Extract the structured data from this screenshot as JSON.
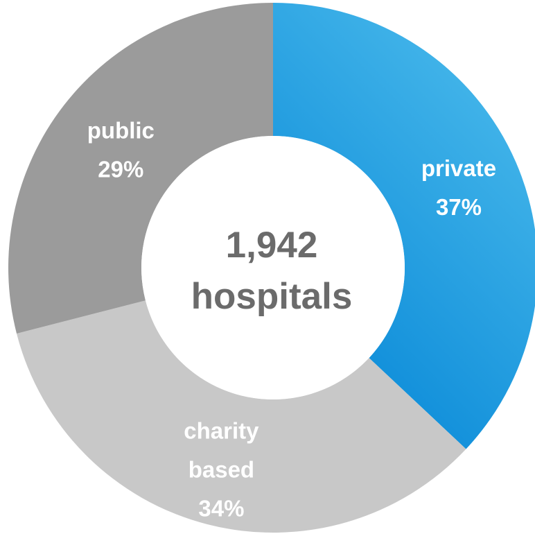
{
  "chart_data": {
    "type": "pie",
    "donut": true,
    "center_label": {
      "line1": "1,942",
      "line2": "hospitals"
    },
    "slices": [
      {
        "label_lines": [
          "private"
        ],
        "pct_text": "37%",
        "value": 37,
        "color": "#1a9be0"
      },
      {
        "label_lines": [
          "charity",
          "based"
        ],
        "pct_text": "34%",
        "value": 34,
        "color": "#c8c8c8"
      },
      {
        "label_lines": [
          "public"
        ],
        "pct_text": "29%",
        "value": 29,
        "color": "#9b9b9b"
      }
    ],
    "start_angle": "12 o'clock",
    "direction": "clockwise"
  }
}
